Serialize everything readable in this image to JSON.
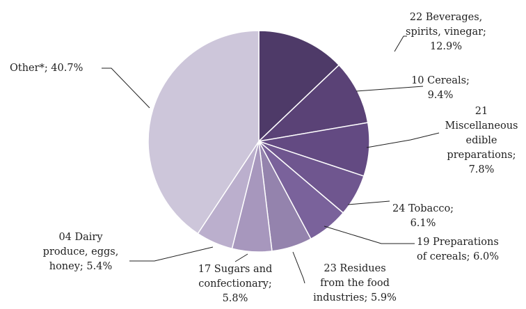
{
  "chart_data": {
    "type": "pie",
    "start_angle_deg": 0,
    "direction": "clockwise",
    "slices": [
      {
        "label_lines": [
          "22 Beverages,",
          "spirits, vinegar;",
          "12.9%"
        ],
        "value": 12.9,
        "color": "#4e3a68"
      },
      {
        "label_lines": [
          "10 Cereals;",
          "9.4%"
        ],
        "value": 9.4,
        "color": "#5a4276"
      },
      {
        "label_lines": [
          "21",
          "Miscellaneous",
          "edible",
          "preparations;",
          "7.8%"
        ],
        "value": 7.8,
        "color": "#634a82"
      },
      {
        "label_lines": [
          "24 Tobacco;",
          "6.1%"
        ],
        "value": 6.1,
        "color": "#6f568f"
      },
      {
        "label_lines": [
          "19 Preparations",
          "of cereals; 6.0%"
        ],
        "value": 6.0,
        "color": "#7a629b"
      },
      {
        "label_lines": [
          "23 Residues",
          "from the food",
          "industries; 5.9%"
        ],
        "value": 5.9,
        "color": "#9483ad"
      },
      {
        "label_lines": [
          "17 Sugars and",
          "confectionary;",
          "5.8%"
        ],
        "value": 5.8,
        "color": "#a797bd"
      },
      {
        "label_lines": [
          "04 Dairy",
          "produce, eggs,",
          "honey; 5.4%"
        ],
        "value": 5.4,
        "color": "#bbafcd"
      },
      {
        "label_lines": [
          "Other*; 40.7%"
        ],
        "value": 40.7,
        "color": "#cdc6da"
      }
    ]
  }
}
